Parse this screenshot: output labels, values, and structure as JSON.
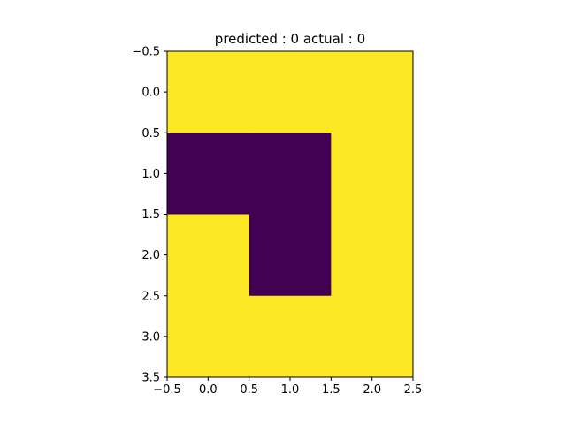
{
  "chart_data": {
    "type": "heatmap",
    "title": "predicted : 0  actual : 0",
    "xlabel": "",
    "ylabel": "",
    "xlim": [
      -0.5,
      2.5
    ],
    "ylim": [
      3.5,
      -0.5
    ],
    "y_inverted": true,
    "grid": false,
    "xticks": [
      -0.5,
      0.0,
      0.5,
      1.0,
      1.5,
      2.0,
      2.5
    ],
    "xtick_labels": [
      "−0.5",
      "0.0",
      "0.5",
      "1.0",
      "1.5",
      "2.0",
      "2.5"
    ],
    "yticks": [
      -0.5,
      0.0,
      0.5,
      1.0,
      1.5,
      2.0,
      2.5,
      3.0,
      3.5
    ],
    "ytick_labels": [
      "−0.5",
      "0.0",
      "0.5",
      "1.0",
      "1.5",
      "2.0",
      "2.5",
      "3.0",
      "3.5"
    ],
    "matrix": [
      [
        1,
        1,
        1
      ],
      [
        0,
        0,
        1
      ],
      [
        1,
        0,
        1
      ],
      [
        1,
        1,
        1
      ]
    ],
    "colormap": {
      "0": "#440154",
      "1": "#fde725"
    }
  }
}
